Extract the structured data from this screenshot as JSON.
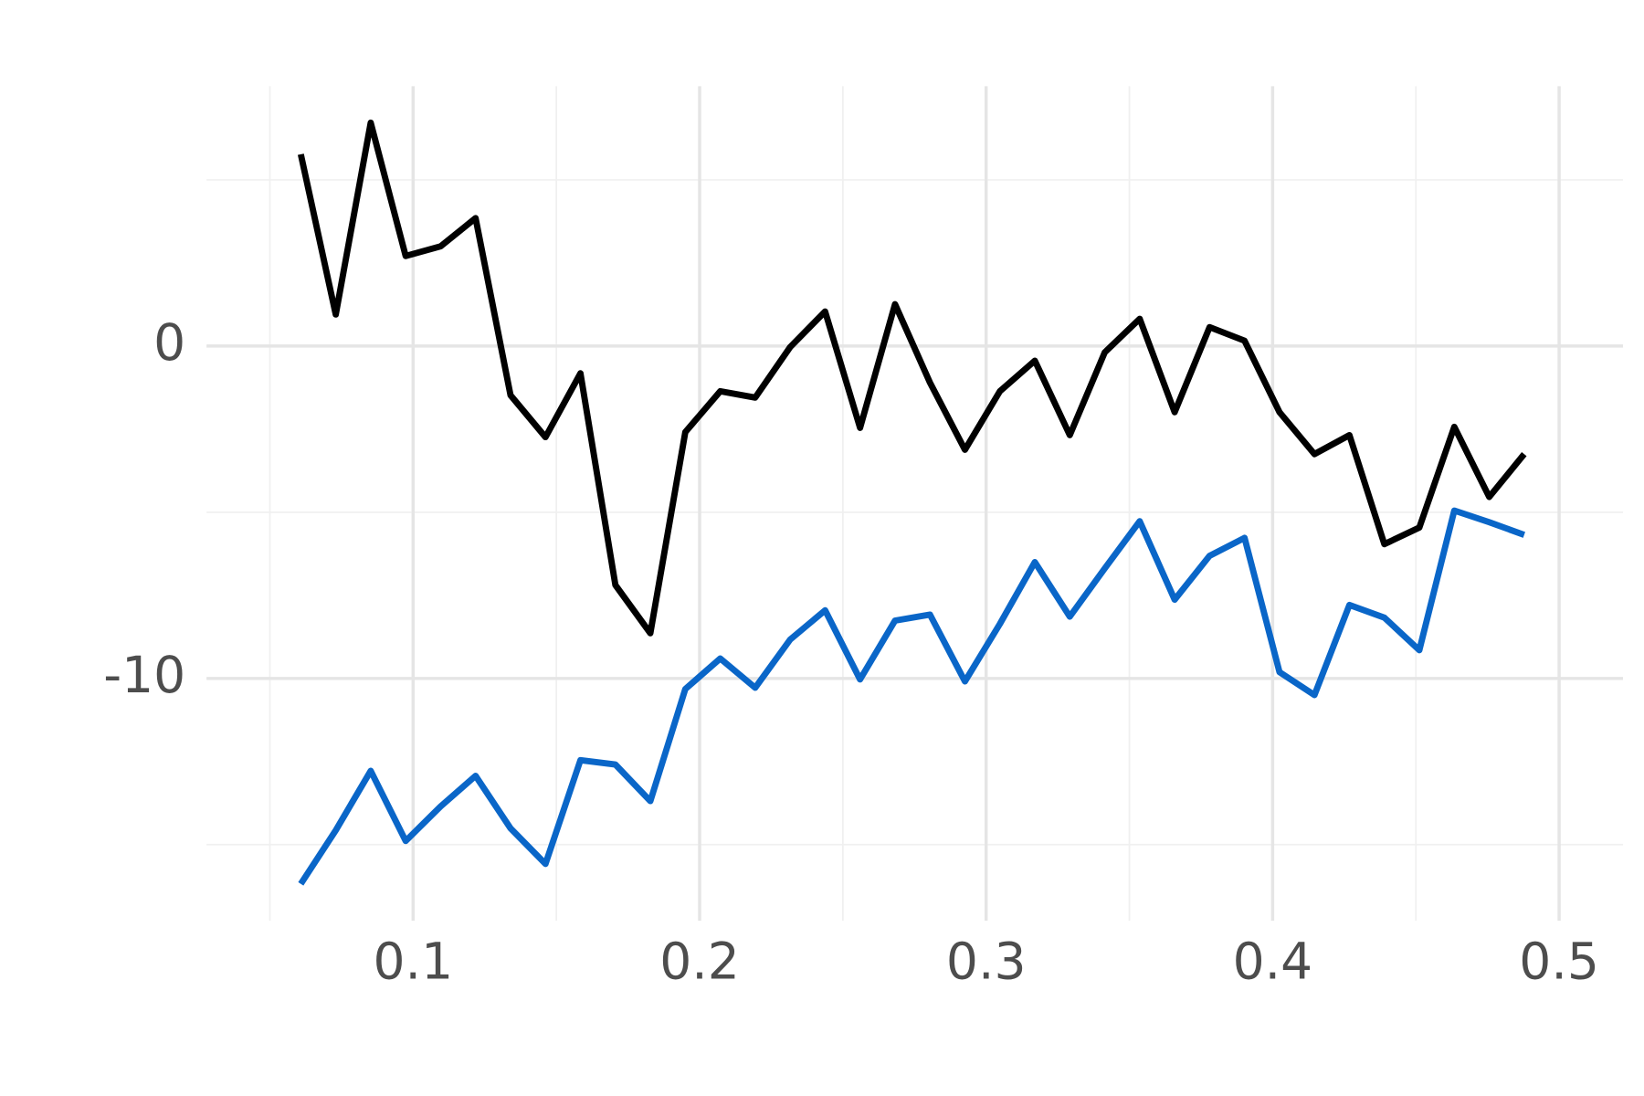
{
  "chart_data": {
    "type": "line",
    "x": [
      0.0608,
      0.073,
      0.0852,
      0.0974,
      0.1096,
      0.1218,
      0.134,
      0.1462,
      0.1584,
      0.1706,
      0.1828,
      0.195,
      0.2072,
      0.2194,
      0.2316,
      0.2438,
      0.256,
      0.2682,
      0.2804,
      0.2926,
      0.3048,
      0.317,
      0.3292,
      0.3414,
      0.3536,
      0.3658,
      0.378,
      0.3902,
      0.4024,
      0.4146,
      0.4268,
      0.439,
      0.4512,
      0.4634,
      0.4756,
      0.4878
    ],
    "series": [
      {
        "color": "#000000",
        "values": [
          5.77,
          0.95,
          6.72,
          2.71,
          3.0,
          3.85,
          -1.48,
          -2.74,
          -0.82,
          -7.19,
          -8.64,
          -2.59,
          -1.36,
          -1.55,
          -0.03,
          1.04,
          -2.46,
          1.26,
          -1.1,
          -3.12,
          -1.36,
          -0.44,
          -2.68,
          -0.19,
          0.82,
          -1.99,
          0.57,
          0.16,
          -1.99,
          -3.25,
          -2.68,
          -5.96,
          -5.46,
          -2.43,
          -4.54,
          -3.25
        ]
      },
      {
        "color": "#0a66c8",
        "values": [
          -16.18,
          -14.57,
          -12.78,
          -14.89,
          -13.85,
          -12.93,
          -14.51,
          -15.58,
          -12.46,
          -12.59,
          -13.69,
          -10.32,
          -9.4,
          -10.28,
          -8.83,
          -7.95,
          -10.03,
          -8.26,
          -8.08,
          -10.09,
          -8.36,
          -6.5,
          -8.14,
          -6.69,
          -5.27,
          -7.63,
          -6.31,
          -5.77,
          -9.81,
          -10.5,
          -7.79,
          -8.17,
          -9.15,
          -4.95,
          -5.3,
          -5.68
        ]
      }
    ],
    "xlim": [
      0.0279,
      0.5223
    ],
    "ylim": [
      -17.29,
      7.82
    ],
    "xticks": [
      0.1,
      0.2,
      0.3,
      0.4,
      0.5
    ],
    "yticks": [
      -10,
      0
    ],
    "x_minor_ticks": [
      0.05,
      0.15,
      0.25,
      0.35,
      0.45
    ],
    "y_minor_ticks": [
      -15,
      -5,
      5
    ],
    "grid": true
  }
}
